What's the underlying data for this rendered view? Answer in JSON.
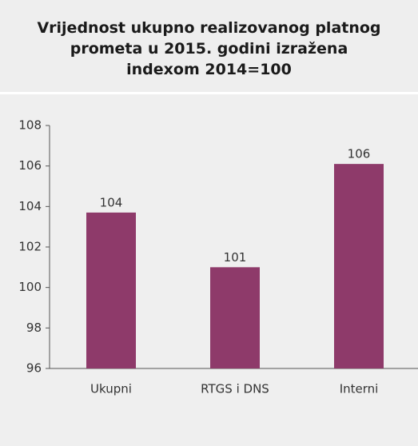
{
  "chart_data": {
    "type": "bar",
    "title": "Vrijednost ukupno realizovanog platnog prometa u 2015. godini izražena indexom 2014=100",
    "categories": [
      "Ukupni",
      "RTGS i DNS",
      "Interni"
    ],
    "values": [
      103.7,
      101.0,
      106.1
    ],
    "value_labels": [
      "104",
      "101",
      "106"
    ],
    "color": "#8e3a6a",
    "ylim": [
      96,
      108
    ],
    "yticks": [
      96,
      98,
      100,
      102,
      104,
      106,
      108
    ],
    "grid": false
  }
}
